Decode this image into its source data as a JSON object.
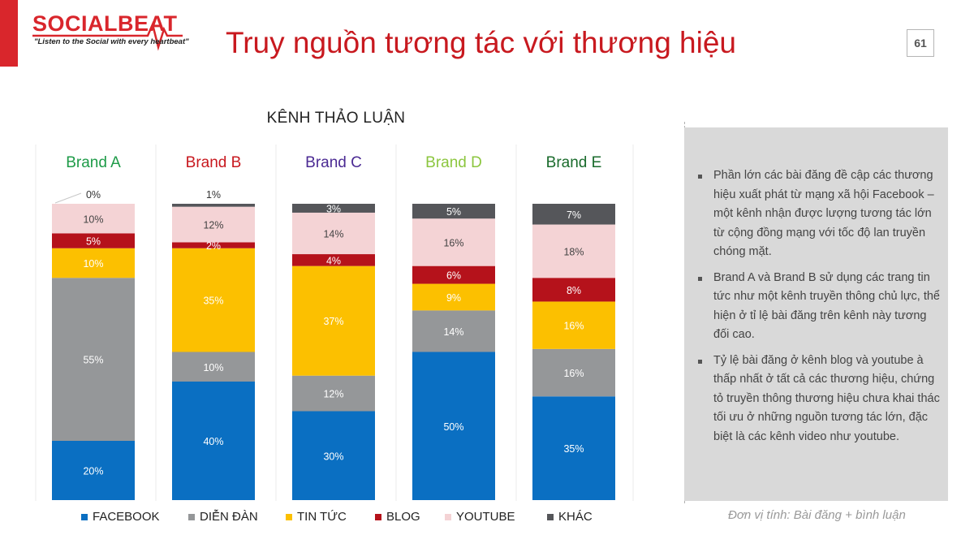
{
  "header": {
    "logo_text": "SOCIALBEAT",
    "logo_tagline": "\"Listen to the Social with every heartbeat\"",
    "title": "Truy nguồn tương tác với thương hiệu",
    "page_number": "61"
  },
  "colors": {
    "brand_red": "#d9262c",
    "title_red": "#c8191f"
  },
  "chart_data": {
    "type": "bar",
    "stacked": true,
    "percent_stacked": true,
    "title": "KÊNH THẢO LUẬN",
    "categories": [
      "Brand A",
      "Brand B",
      "Brand C",
      "Brand D",
      "Brand E"
    ],
    "category_colors": [
      "#1e9b48",
      "#c8191f",
      "#4b2a93",
      "#8cc63f",
      "#1a6b2c"
    ],
    "series": [
      {
        "name": "FACEBOOK",
        "color": "#0a6fc2",
        "values": [
          20,
          40,
          30,
          50,
          35
        ],
        "labels": [
          "20%",
          "40%",
          "30%",
          "50%",
          "35%"
        ]
      },
      {
        "name": "DIỄN ĐÀN",
        "color": "#959799",
        "values": [
          55,
          10,
          12,
          14,
          16
        ],
        "labels": [
          "55%",
          "10%",
          "12%",
          "14%",
          "16%"
        ]
      },
      {
        "name": "TIN TỨC",
        "color": "#fcc000",
        "values": [
          10,
          35,
          37,
          9,
          16
        ],
        "labels": [
          "10%",
          "35%",
          "37%",
          "9%",
          "16%"
        ]
      },
      {
        "name": "BLOG",
        "color": "#b5121b",
        "values": [
          5,
          2,
          4,
          6,
          8
        ],
        "labels": [
          "5%",
          "2%",
          "4%",
          "6%",
          "8%"
        ]
      },
      {
        "name": "YOUTUBE",
        "color": "#f4d3d5",
        "values": [
          10,
          12,
          14,
          16,
          18
        ],
        "labels": [
          "10%",
          "12%",
          "14%",
          "16%",
          "18%"
        ]
      },
      {
        "name": "KHÁC",
        "color": "#55565a",
        "values": [
          0,
          1,
          3,
          5,
          7
        ],
        "labels": [
          "0%",
          "1%",
          "3%",
          "5%",
          "7%"
        ]
      }
    ],
    "ylim": [
      0,
      100
    ],
    "legend_position": "bottom"
  },
  "panel": {
    "bullets": [
      "Phần lớn các bài đăng đề cập các thương hiệu xuất phát từ mạng xã hội Facebook – một kênh nhận được lượng tương tác lớn từ cộng đồng mạng với tốc độ lan truyền chóng mặt.",
      "Brand A và Brand B sử dụng các trang tin tức như một kênh truyền thông chủ lực, thể hiện ở tỉ lệ bài đăng trên kênh này tương đối cao.",
      "Tỷ lệ bài đăng ở kênh blog và youtube à thấp nhất ở tất cả các thương hiệu, chứng tỏ truyền thông thương hiệu chưa khai thác tối ưu ở những nguồn tương tác lớn, đặc biệt là các kênh video như youtube."
    ]
  },
  "unit_note": "Đơn vị tính: Bài đăng + bình luận"
}
